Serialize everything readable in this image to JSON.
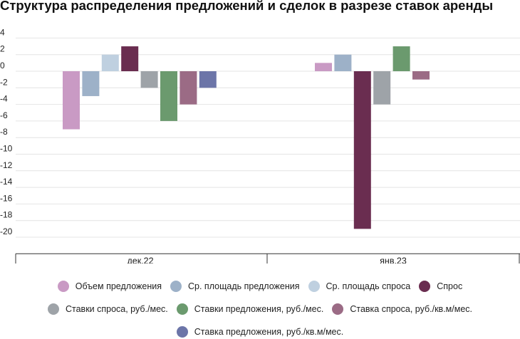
{
  "chart_data": {
    "type": "bar",
    "title": "Структура распределения предложений и сделок в разрезе ставок аренды",
    "categories": [
      "дек.22",
      "янв.23"
    ],
    "ylim": [
      -22,
      4
    ],
    "yticks": [
      4,
      2,
      0,
      -2,
      -4,
      -6,
      -8,
      -10,
      -12,
      -14,
      -16,
      -18,
      -20
    ],
    "grid": true,
    "legend_position": "bottom",
    "series": [
      {
        "name": "Объем предложения",
        "color": "#c99ac4",
        "values": [
          -7,
          1
        ]
      },
      {
        "name": "Ср. площадь предложения",
        "color": "#9db1c8",
        "values": [
          -3,
          2
        ]
      },
      {
        "name": "Ср. площадь спроса",
        "color": "#bfd0e0",
        "values": [
          2,
          null
        ]
      },
      {
        "name": "Спрос",
        "color": "#6a2d50",
        "values": [
          3,
          -19
        ]
      },
      {
        "name": "Ставки спроса, руб./мес.",
        "color": "#9ea3a8",
        "values": [
          -2,
          -4
        ]
      },
      {
        "name": "Ставки предложения, руб./мес.",
        "color": "#6b9a6e",
        "values": [
          -6,
          3
        ]
      },
      {
        "name": "Ставка спроса, руб./кв.м/мес.",
        "color": "#9b6b85",
        "values": [
          -4,
          -1
        ]
      },
      {
        "name": "Ставка предложения, руб./кв.м/мес.",
        "color": "#6c75a8",
        "values": [
          -2,
          null
        ]
      }
    ]
  }
}
